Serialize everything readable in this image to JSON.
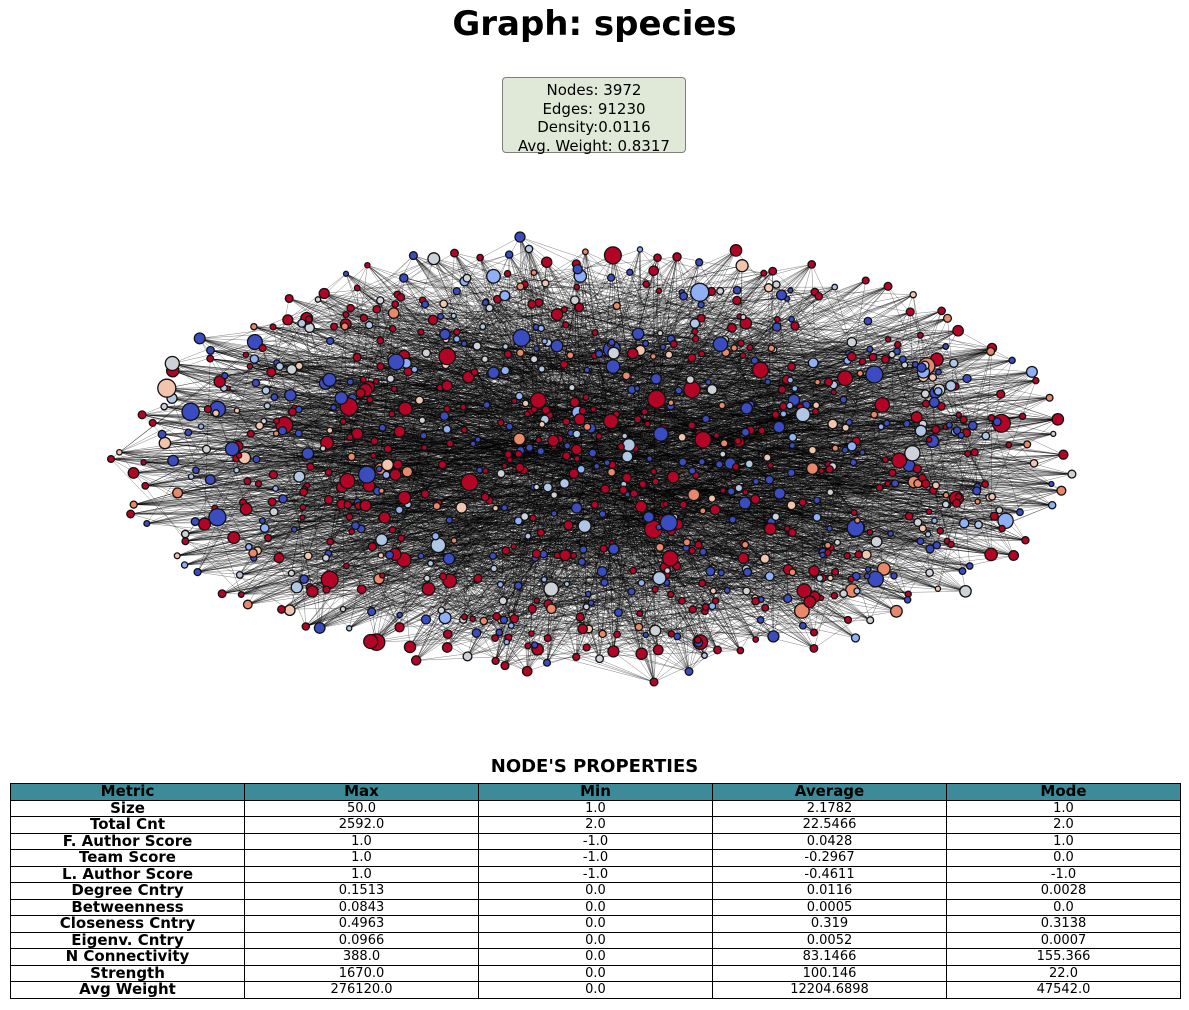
{
  "title": "Graph: species",
  "stats": {
    "nodes": "Nodes: 3972",
    "edges": "Edges: 91230",
    "density": "Density:0.0116",
    "avg_weight": "Avg. Weight: 0.8317"
  },
  "colors": {
    "header_bg": "#3d8b98",
    "stats_bg": "#e0e9d8",
    "node_palette": [
      "#b40426",
      "#3b4cc0",
      "#cdd1d8",
      "#e7886a",
      "#8fb0f6",
      "#b0c6e5",
      "#f0c4ad"
    ]
  },
  "table": {
    "title": "NODE'S PROPERTIES",
    "headers": [
      "Metric",
      "Max",
      "Min",
      "Average",
      "Mode"
    ],
    "rows": [
      [
        "Size",
        "50.0",
        "1.0",
        "2.1782",
        "1.0"
      ],
      [
        "Total Cnt",
        "2592.0",
        "2.0",
        "22.5466",
        "2.0"
      ],
      [
        "F. Author Score",
        "1.0",
        "-1.0",
        "0.0428",
        "1.0"
      ],
      [
        "Team Score",
        "1.0",
        "-1.0",
        "-0.2967",
        "0.0"
      ],
      [
        "L. Author Score",
        "1.0",
        "-1.0",
        "-0.4611",
        "-1.0"
      ],
      [
        "Degree Cntry",
        "0.1513",
        "0.0",
        "0.0116",
        "0.0028"
      ],
      [
        "Betweenness",
        "0.0843",
        "0.0",
        "0.0005",
        "0.0"
      ],
      [
        "Closeness Cntry",
        "0.4963",
        "0.0",
        "0.319",
        "0.3138"
      ],
      [
        "Eigenv. Cntry",
        "0.0966",
        "0.0",
        "0.0052",
        "0.0007"
      ],
      [
        "N Connectivity",
        "388.0",
        "0.0",
        "83.1466",
        "155.366"
      ],
      [
        "Strength",
        "1670.0",
        "0.0",
        "100.146",
        "22.0"
      ],
      [
        "Avg Weight",
        "276120.0",
        "0.0",
        "12204.6898",
        "47542.0"
      ]
    ]
  }
}
